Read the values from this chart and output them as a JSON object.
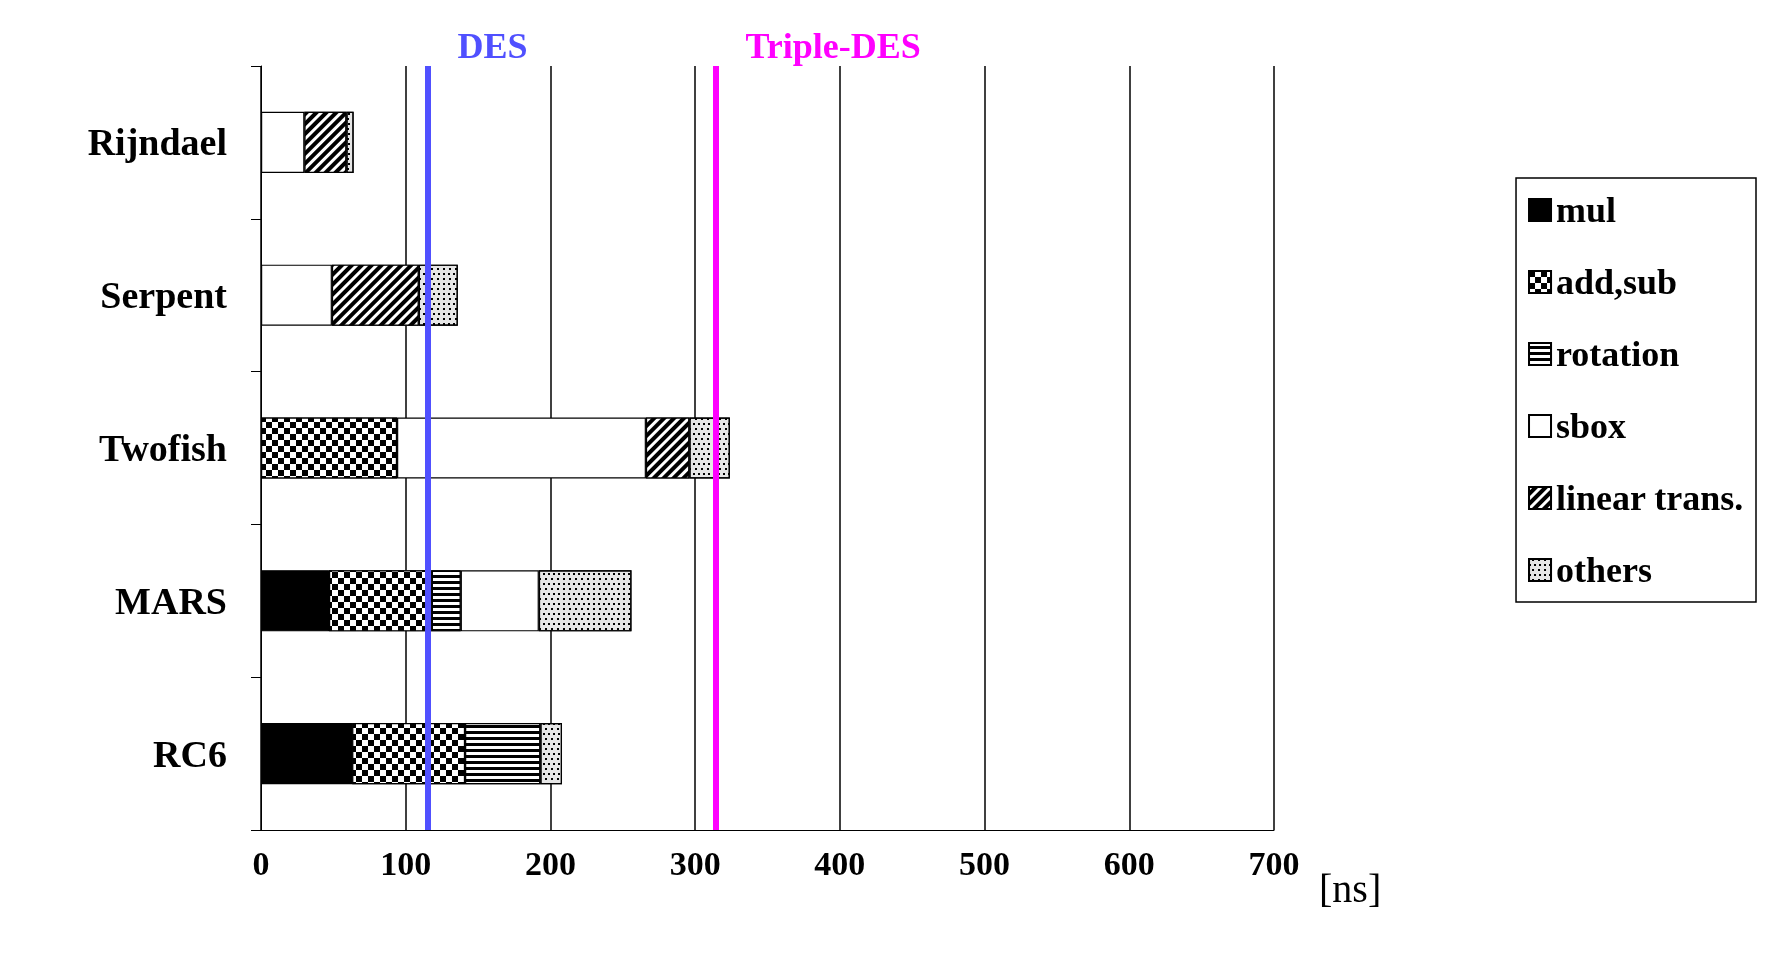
{
  "chart_data": {
    "type": "bar",
    "orientation": "horizontal",
    "stacked": true,
    "categories": [
      "Rijndael",
      "Serpent",
      "Twofish",
      "MARS",
      "RC6"
    ],
    "series": [
      {
        "name": "mul",
        "color": "#000000",
        "values": [
          null,
          null,
          null,
          47,
          63
        ]
      },
      {
        "name": "add,sub",
        "color": "#000000",
        "values": [
          null,
          null,
          94,
          71,
          78
        ]
      },
      {
        "name": "rotation",
        "color": "#000000",
        "values": [
          null,
          null,
          null,
          20,
          52
        ]
      },
      {
        "name": "sbox",
        "color": "#ffffff",
        "values": [
          30,
          49,
          172,
          54,
          null
        ]
      },
      {
        "name": "linear trans.",
        "color": "#000000",
        "values": [
          29,
          60,
          30,
          null,
          null
        ]
      },
      {
        "name": "others",
        "color": "#e6e6e6",
        "values": [
          5,
          27,
          28,
          64,
          15
        ]
      }
    ],
    "xlim": [
      0,
      700
    ],
    "xticks": [
      0,
      100,
      200,
      300,
      400,
      500,
      600,
      700
    ],
    "xlabel": "[ns]",
    "grid": "x",
    "legend": "right",
    "ref_lines": [
      {
        "axis": "x",
        "value": 115,
        "label": "DES",
        "color": "#5050ff"
      },
      {
        "axis": "x",
        "value": 314,
        "label": "Triple-DES",
        "color": "#ff00ff"
      }
    ]
  }
}
